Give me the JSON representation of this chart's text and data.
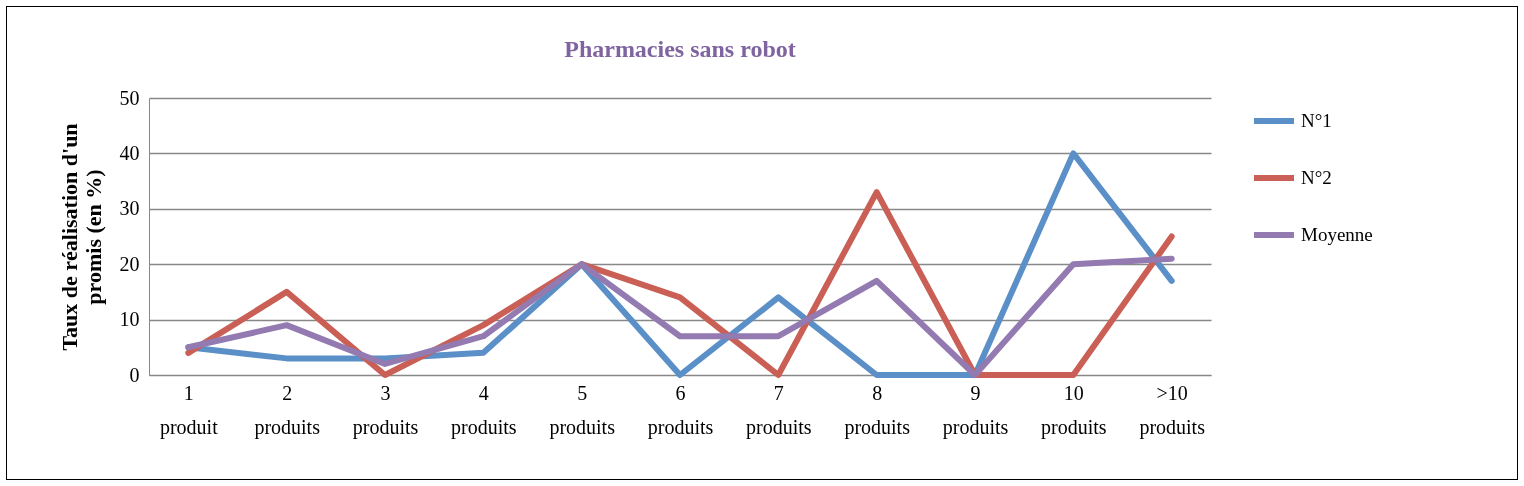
{
  "chart_data": {
    "type": "line",
    "title": "Pharmacies sans robot",
    "ylabel": "Taux de réalisation d'un promis  (en %)",
    "categories": [
      "1 produit",
      "2 produits",
      "3 produits",
      "4 produits",
      "5 produits",
      "6 produits",
      "7 produits",
      "8 produits",
      "9 produits",
      "10 produits",
      ">10 produits"
    ],
    "series": [
      {
        "name": "N°1",
        "color": "#5b8fc7",
        "values": [
          5,
          3,
          3,
          4,
          20,
          0,
          14,
          0,
          0,
          40,
          17
        ]
      },
      {
        "name": "N°2",
        "color": "#c95f55",
        "values": [
          4,
          15,
          0,
          9,
          20,
          14,
          0,
          33,
          0,
          0,
          25
        ]
      },
      {
        "name": "Moyenne",
        "color": "#937ab1",
        "values": [
          5,
          9,
          2,
          7,
          20,
          7,
          7,
          17,
          0,
          20,
          21
        ]
      }
    ],
    "ylim": [
      0,
      50
    ],
    "yticks": [
      0,
      10,
      20,
      30,
      40,
      50
    ],
    "grid": "y",
    "legend": "right",
    "marker": "none",
    "line_style": "solid"
  }
}
